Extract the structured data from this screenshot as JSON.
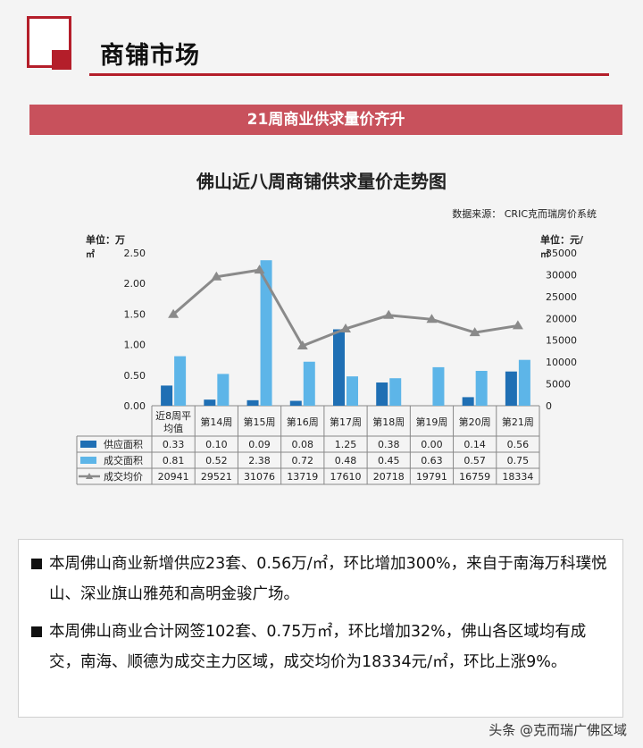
{
  "header": {
    "section_title": "商铺市场",
    "banner": "21周商业供求量价齐升"
  },
  "chart_data": {
    "type": "bar",
    "title": "佛山近八周商铺供求量价走势图",
    "source": "数据来源： CRIC克而瑞房价系统",
    "left_unit": "单位：万㎡",
    "right_unit": "单位：元/㎡",
    "categories": [
      "近8周平均值",
      "第14周",
      "第15周",
      "第16周",
      "第17周",
      "第18周",
      "第19周",
      "第20周",
      "第21周"
    ],
    "y_left": {
      "min": 0,
      "max": 2.5,
      "ticks": [
        "0.00",
        "0.50",
        "1.00",
        "1.50",
        "2.00",
        "2.50"
      ]
    },
    "y_right": {
      "min": 0,
      "max": 35000,
      "ticks": [
        "0",
        "5000",
        "10000",
        "15000",
        "20000",
        "25000",
        "30000",
        "35000"
      ]
    },
    "series": [
      {
        "name": "供应面积",
        "type": "bar",
        "axis": "left",
        "color": "#1f6fb4",
        "values": [
          0.33,
          0.1,
          0.09,
          0.08,
          1.25,
          0.38,
          0.0,
          0.14,
          0.56
        ],
        "labels": [
          "0.33",
          "0.10",
          "0.09",
          "0.08",
          "1.25",
          "0.38",
          "0.00",
          "0.14",
          "0.56"
        ]
      },
      {
        "name": "成交面积",
        "type": "bar",
        "axis": "left",
        "color": "#5db5e8",
        "values": [
          0.81,
          0.52,
          2.38,
          0.72,
          0.48,
          0.45,
          0.63,
          0.57,
          0.75
        ],
        "labels": [
          "0.81",
          "0.52",
          "2.38",
          "0.72",
          "0.48",
          "0.45",
          "0.63",
          "0.57",
          "0.75"
        ]
      },
      {
        "name": "成交均价",
        "type": "line",
        "axis": "right",
        "color": "#8a8a8a",
        "values": [
          20941,
          29521,
          31076,
          13719,
          17610,
          20718,
          19791,
          16759,
          18334
        ],
        "labels": [
          "20941",
          "29521",
          "31076",
          "13719",
          "17610",
          "20718",
          "19791",
          "16759",
          "18334"
        ]
      }
    ]
  },
  "notes": [
    "本周佛山商业新增供应23套、0.56万/㎡，环比增加300%，来自于南海万科璞悦山、深业旗山雅苑和高明金骏广场。",
    "本周佛山商业合计网签102套、0.75万㎡，环比增加32%，佛山各区域均有成交，南海、顺德为成交主力区域，成交均价为18334元/㎡，环比上涨9%。"
  ],
  "watermark": "头条 @克而瑞广佛区域"
}
